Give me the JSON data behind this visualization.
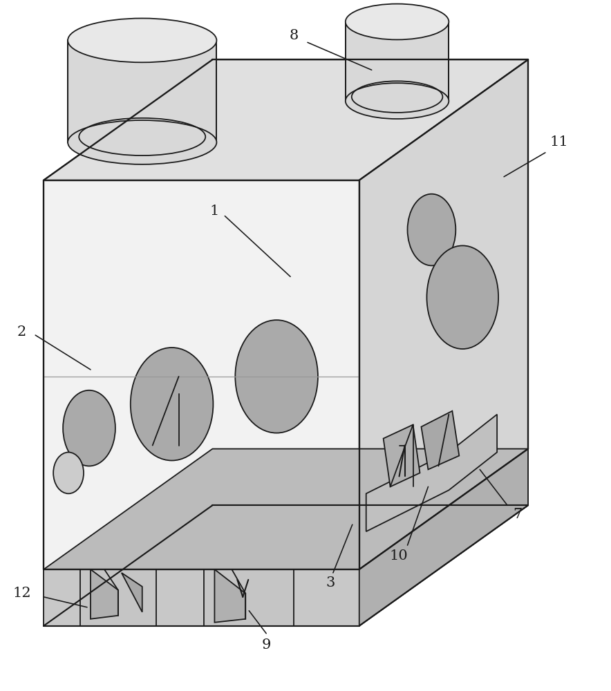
{
  "bg_color": "#ffffff",
  "line_color": "#1a1a1a",
  "line_width": 1.3,
  "fig_width": 8.84,
  "fig_height": 10.0,
  "label_fontsize": 15,
  "face_colors": {
    "front": "#f2f2f2",
    "top": "#e0e0e0",
    "right": "#d5d5d5",
    "slot_front": "#c8c8c8",
    "slot_top": "#bbbbbb",
    "slot_right": "#b0b0b0",
    "hole": "#aaaaaa",
    "blade": "#c0c0c0",
    "blade_dark": "#989898",
    "cyl_top": "#e8e8e8",
    "cyl_side": "#d8d8d8"
  }
}
